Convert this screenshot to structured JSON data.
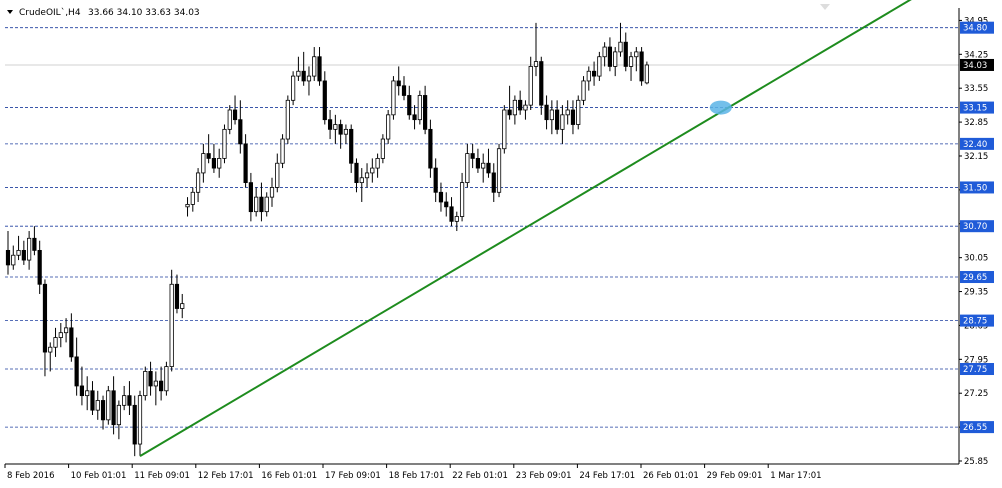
{
  "header": {
    "symbol": "CrudeOIL`,H4",
    "ohlc": "33.66 34.10 33.63 34.03"
  },
  "colors": {
    "background": "#ffffff",
    "level_line": "#1f3f9f",
    "level_label_bg": "#1f5bd8",
    "trend_line": "#1e8c1e",
    "marker": "#5ab4e6",
    "candle": "#000000",
    "current_price_bg": "#000000"
  },
  "chart_data": {
    "type": "candlestick",
    "ylim": [
      25.85,
      35.0
    ],
    "y_ticks": [
      34.95,
      34.25,
      33.55,
      32.85,
      32.15,
      31.45,
      30.75,
      30.05,
      29.35,
      28.65,
      27.95,
      27.25,
      26.55,
      25.85
    ],
    "x_ticks": [
      "8 Feb 2016",
      "10 Feb 01:01",
      "11 Feb 09:01",
      "12 Feb 17:01",
      "16 Feb 01:01",
      "17 Feb 09:01",
      "18 Feb 17:01",
      "22 Feb 01:01",
      "23 Feb 09:01",
      "24 Feb 17:01",
      "26 Feb 01:01",
      "29 Feb 09:01",
      "1 Mar 17:01"
    ],
    "levels": [
      34.8,
      33.15,
      32.4,
      31.5,
      30.7,
      29.65,
      28.75,
      27.75,
      26.55
    ],
    "current_price": 34.03,
    "trend_line": {
      "from": {
        "bar": 25,
        "price": 25.95
      },
      "to": {
        "bar": 155,
        "price": 34.35
      }
    },
    "marker": {
      "bar": 135,
      "price": 33.15
    },
    "candles": [
      [
        30.2,
        30.6,
        29.7,
        29.9
      ],
      [
        29.9,
        30.3,
        29.8,
        30.1
      ],
      [
        30.1,
        30.5,
        30.0,
        30.2
      ],
      [
        30.2,
        30.4,
        29.9,
        30.0
      ],
      [
        30.0,
        30.6,
        29.8,
        30.45
      ],
      [
        30.45,
        30.7,
        30.1,
        30.2
      ],
      [
        30.2,
        30.4,
        29.3,
        29.5
      ],
      [
        29.5,
        29.6,
        27.6,
        28.1
      ],
      [
        28.1,
        28.3,
        27.7,
        28.2
      ],
      [
        28.2,
        28.6,
        28.0,
        28.4
      ],
      [
        28.4,
        28.7,
        28.2,
        28.5
      ],
      [
        28.5,
        28.8,
        28.3,
        28.6
      ],
      [
        28.6,
        28.9,
        27.9,
        28.0
      ],
      [
        28.0,
        28.4,
        27.2,
        27.4
      ],
      [
        27.4,
        27.8,
        27.0,
        27.2
      ],
      [
        27.2,
        27.6,
        26.9,
        27.3
      ],
      [
        27.3,
        27.5,
        26.8,
        26.9
      ],
      [
        26.9,
        27.3,
        26.7,
        27.1
      ],
      [
        27.1,
        27.2,
        26.5,
        26.7
      ],
      [
        26.7,
        27.4,
        26.6,
        27.3
      ],
      [
        27.3,
        27.6,
        26.4,
        26.6
      ],
      [
        26.6,
        27.1,
        26.3,
        27.0
      ],
      [
        27.0,
        27.4,
        26.9,
        27.2
      ],
      [
        27.2,
        27.5,
        26.8,
        27.0
      ],
      [
        27.0,
        27.2,
        25.95,
        26.2
      ],
      [
        26.2,
        27.3,
        25.95,
        27.2
      ],
      [
        27.2,
        27.8,
        27.1,
        27.7
      ],
      [
        27.7,
        27.9,
        27.2,
        27.4
      ],
      [
        27.4,
        27.7,
        27.0,
        27.5
      ],
      [
        27.5,
        27.8,
        27.1,
        27.3
      ],
      [
        27.3,
        27.9,
        27.2,
        27.8
      ],
      [
        27.8,
        29.8,
        27.7,
        29.5
      ],
      [
        29.5,
        29.7,
        28.9,
        29.0
      ],
      [
        29.0,
        29.3,
        28.8,
        29.1
      ],
      [
        31.1,
        31.3,
        30.9,
        31.15
      ],
      [
        31.15,
        31.5,
        31.0,
        31.4
      ],
      [
        31.4,
        31.9,
        31.2,
        31.8
      ],
      [
        31.8,
        32.4,
        31.6,
        32.2
      ],
      [
        32.2,
        32.6,
        32.0,
        32.1
      ],
      [
        32.1,
        32.4,
        31.8,
        31.9
      ],
      [
        31.9,
        32.3,
        31.7,
        32.1
      ],
      [
        32.1,
        32.8,
        32.0,
        32.7
      ],
      [
        32.7,
        33.2,
        32.6,
        33.1
      ],
      [
        33.1,
        33.4,
        32.8,
        32.9
      ],
      [
        32.9,
        33.3,
        32.2,
        32.4
      ],
      [
        32.4,
        32.6,
        31.5,
        31.6
      ],
      [
        31.6,
        31.8,
        30.8,
        31.0
      ],
      [
        31.0,
        31.5,
        30.9,
        31.3
      ],
      [
        31.3,
        31.6,
        30.8,
        31.0
      ],
      [
        31.0,
        31.4,
        30.9,
        31.3
      ],
      [
        31.3,
        31.7,
        31.1,
        31.5
      ],
      [
        31.5,
        32.2,
        31.4,
        32.0
      ],
      [
        32.0,
        32.6,
        31.9,
        32.5
      ],
      [
        32.5,
        33.4,
        32.4,
        33.3
      ],
      [
        33.3,
        33.9,
        33.2,
        33.8
      ],
      [
        33.8,
        34.2,
        33.7,
        33.9
      ],
      [
        33.9,
        34.3,
        33.6,
        33.7
      ],
      [
        33.7,
        34.0,
        33.4,
        33.8
      ],
      [
        33.8,
        34.4,
        33.7,
        34.2
      ],
      [
        34.2,
        34.4,
        33.6,
        33.7
      ],
      [
        33.7,
        33.9,
        32.8,
        32.9
      ],
      [
        32.9,
        33.1,
        32.5,
        32.7
      ],
      [
        32.7,
        33.0,
        32.4,
        32.8
      ],
      [
        32.8,
        32.9,
        32.3,
        32.6
      ],
      [
        32.6,
        32.8,
        32.4,
        32.7
      ],
      [
        32.7,
        32.8,
        31.8,
        32.0
      ],
      [
        32.0,
        32.1,
        31.4,
        31.6
      ],
      [
        31.6,
        31.9,
        31.2,
        31.7
      ],
      [
        31.7,
        32.0,
        31.5,
        31.8
      ],
      [
        31.8,
        32.1,
        31.6,
        31.9
      ],
      [
        31.9,
        32.2,
        31.7,
        32.1
      ],
      [
        32.1,
        32.6,
        32.0,
        32.5
      ],
      [
        32.5,
        33.1,
        32.4,
        33.0
      ],
      [
        33.0,
        33.8,
        32.9,
        33.7
      ],
      [
        33.7,
        34.0,
        33.4,
        33.6
      ],
      [
        33.6,
        33.8,
        33.3,
        33.4
      ],
      [
        33.4,
        33.6,
        32.9,
        33.0
      ],
      [
        33.0,
        33.2,
        32.7,
        32.9
      ],
      [
        32.9,
        33.5,
        32.8,
        33.4
      ],
      [
        33.4,
        33.6,
        32.6,
        32.7
      ],
      [
        32.7,
        32.9,
        31.7,
        31.9
      ],
      [
        31.9,
        32.1,
        31.2,
        31.4
      ],
      [
        31.4,
        31.6,
        31.0,
        31.2
      ],
      [
        31.2,
        31.4,
        30.9,
        31.1
      ],
      [
        31.1,
        31.3,
        30.7,
        30.8
      ],
      [
        30.8,
        31.0,
        30.6,
        30.9
      ],
      [
        30.9,
        31.8,
        30.8,
        31.6
      ],
      [
        31.6,
        32.4,
        31.5,
        32.2
      ],
      [
        32.2,
        32.4,
        31.9,
        32.1
      ],
      [
        32.1,
        32.3,
        31.8,
        31.9
      ],
      [
        31.9,
        32.2,
        31.6,
        32.0
      ],
      [
        32.0,
        32.3,
        31.7,
        31.8
      ],
      [
        31.8,
        32.0,
        31.2,
        31.4
      ],
      [
        31.4,
        32.4,
        31.3,
        32.3
      ],
      [
        32.3,
        33.2,
        32.2,
        33.1
      ],
      [
        33.1,
        33.6,
        32.9,
        33.0
      ],
      [
        33.0,
        33.4,
        32.8,
        33.3
      ],
      [
        33.3,
        33.5,
        33.0,
        33.1
      ],
      [
        33.1,
        33.3,
        32.9,
        33.2
      ],
      [
        33.2,
        34.2,
        33.1,
        34.0
      ],
      [
        34.0,
        34.9,
        33.8,
        34.1
      ],
      [
        34.1,
        34.2,
        33.0,
        33.2
      ],
      [
        33.2,
        33.4,
        32.7,
        32.9
      ],
      [
        32.9,
        33.3,
        32.6,
        33.1
      ],
      [
        33.1,
        33.3,
        32.6,
        32.7
      ],
      [
        32.7,
        33.2,
        32.4,
        33.0
      ],
      [
        33.0,
        33.3,
        32.8,
        33.1
      ],
      [
        33.1,
        33.3,
        32.6,
        32.8
      ],
      [
        32.8,
        33.4,
        32.7,
        33.3
      ],
      [
        33.3,
        33.8,
        33.2,
        33.7
      ],
      [
        33.7,
        34.0,
        33.5,
        33.9
      ],
      [
        33.9,
        34.1,
        33.6,
        33.8
      ],
      [
        33.8,
        34.3,
        33.7,
        34.2
      ],
      [
        34.2,
        34.5,
        34.0,
        34.4
      ],
      [
        34.4,
        34.6,
        33.9,
        34.0
      ],
      [
        34.0,
        34.4,
        33.8,
        34.3
      ],
      [
        34.3,
        34.9,
        34.2,
        34.5
      ],
      [
        34.5,
        34.7,
        33.9,
        34.0
      ],
      [
        34.0,
        34.3,
        33.7,
        34.2
      ],
      [
        34.2,
        34.4,
        33.9,
        34.3
      ],
      [
        34.3,
        34.4,
        33.6,
        33.7
      ],
      [
        33.66,
        34.1,
        33.63,
        34.03
      ]
    ]
  }
}
